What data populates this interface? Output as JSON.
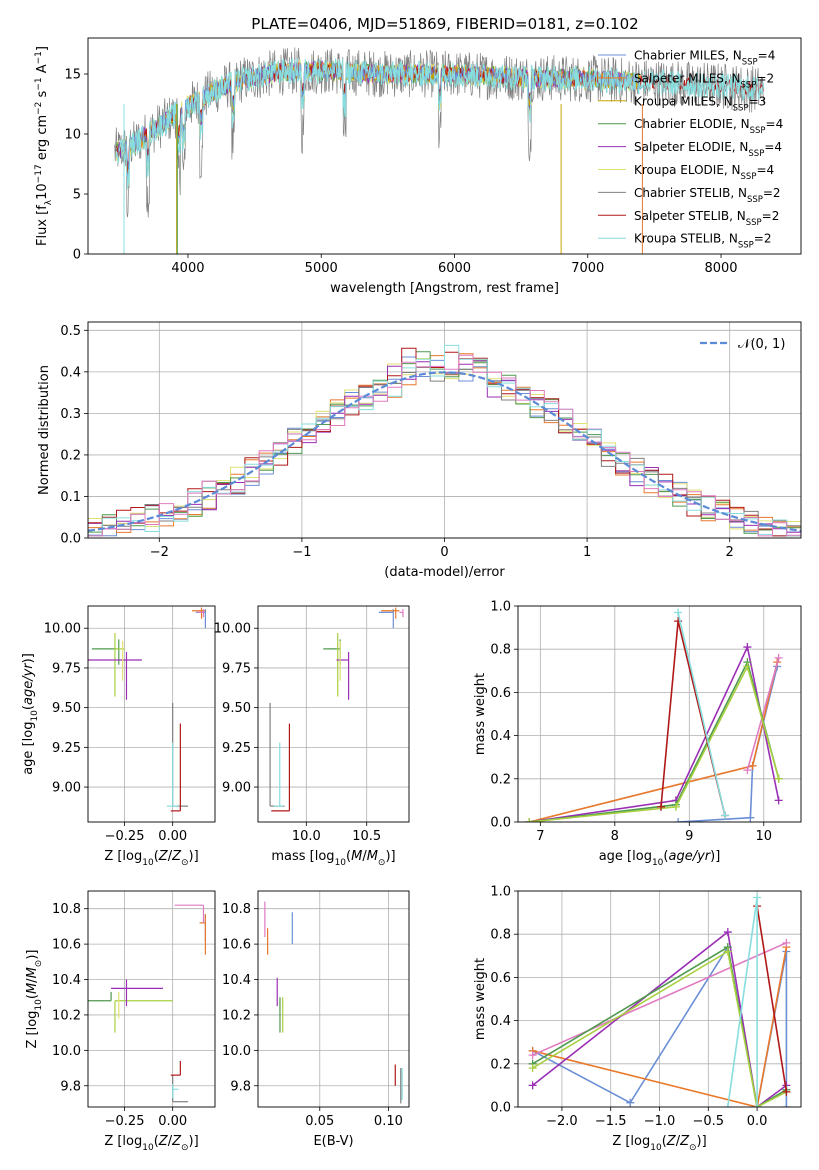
{
  "figure_title": "PLATE=0406, MJD=51869, FIBERID=0181, z=0.102",
  "colors": {
    "chabrier_miles": "#6b8fd6",
    "salpeter_miles": "#e8782c",
    "kroupa_miles": "#c8a400",
    "chabrier_elodie": "#4f9a4f",
    "salpeter_elodie": "#9a2fb5",
    "kroupa_elodie": "#e0e070",
    "chabrier_stelib": "#808080",
    "salpeter_stelib": "#b01818",
    "kroupa_stelib": "#88dede",
    "pink": "#e07bc0",
    "lime": "#a8d040",
    "normal": "#5b8bd6"
  },
  "chart_data": [
    {
      "id": "spectrum",
      "type": "line",
      "xlabel": "wavelength [Angstrom, rest frame]",
      "ylabel": "Flux [f",
      "xlim": [
        3250,
        8600
      ],
      "ylim": [
        0,
        18
      ],
      "xticks": [
        4000,
        5000,
        6000,
        7000,
        8000
      ],
      "yticks": [
        0,
        5,
        10,
        15
      ],
      "spectrum_envelope": {
        "x": [
          3450,
          3600,
          3800,
          4000,
          4200,
          4400,
          4700,
          5000,
          5500,
          6000,
          6500,
          7000,
          7500,
          8000,
          8300
        ],
        "y": [
          8.5,
          9.2,
          10.8,
          12.3,
          13.6,
          14.5,
          15.2,
          15.3,
          15.0,
          15.0,
          14.7,
          14.6,
          14.3,
          14.0,
          13.7
        ]
      },
      "legend": [
        {
          "label": "Chabrier MILES, N",
          "sub": "SSP",
          "suffix": "=4",
          "color": "chabrier_miles"
        },
        {
          "label": "Salpeter MILES, N",
          "sub": "SSP",
          "suffix": "=2",
          "color": "salpeter_miles"
        },
        {
          "label": "Kroupa MILES, N",
          "sub": "SSP",
          "suffix": "=3",
          "color": "kroupa_miles"
        },
        {
          "label": "Chabrier ELODIE, N",
          "sub": "SSP",
          "suffix": "=4",
          "color": "chabrier_elodie"
        },
        {
          "label": "Salpeter ELODIE, N",
          "sub": "SSP",
          "suffix": "=4",
          "color": "salpeter_elodie"
        },
        {
          "label": "Kroupa ELODIE, N",
          "sub": "SSP",
          "suffix": "=4",
          "color": "kroupa_elodie"
        },
        {
          "label": "Chabrier STELIB, N",
          "sub": "SSP",
          "suffix": "=2",
          "color": "chabrier_stelib"
        },
        {
          "label": "Salpeter STELIB, N",
          "sub": "SSP",
          "suffix": "=2",
          "color": "salpeter_stelib"
        },
        {
          "label": "Kroupa STELIB, N",
          "sub": "SSP",
          "suffix": "=2",
          "color": "kroupa_stelib"
        }
      ]
    },
    {
      "id": "residuals",
      "type": "line",
      "xlabel": "(data-model)/error",
      "ylabel": "Normed distribution",
      "xlim": [
        -2.5,
        2.5
      ],
      "ylim": [
        0,
        0.52
      ],
      "xticks": [
        -2,
        -1,
        0,
        1,
        2
      ],
      "yticks": [
        0.0,
        0.1,
        0.2,
        0.3,
        0.4,
        0.5
      ],
      "legend_label": "𝒩(0, 1)",
      "grid": true
    },
    {
      "id": "age_Z",
      "type": "scatter",
      "xlabel": "Z [log",
      "ylabel": "age  [log",
      "xlim": [
        -0.44,
        0.22
      ],
      "ylim": [
        8.78,
        10.14
      ],
      "xticks": [
        -0.25,
        0.0
      ],
      "xticklabels": [
        "−0.25",
        "0.00"
      ],
      "yticks": [
        9.0,
        9.25,
        9.5,
        9.75,
        10.0
      ],
      "yticklabels": [
        "9.00",
        "9.25",
        "9.50",
        "9.75",
        "10.00"
      ],
      "points": [
        {
          "x": 0.17,
          "y": 10.1,
          "xerr": [
            0.05,
            0.0
          ],
          "yerr": [
            0.1,
            0.02
          ],
          "c": "chabrier_miles"
        },
        {
          "x": 0.15,
          "y": 10.11,
          "xerr": [
            0.05,
            0.02
          ],
          "yerr": [
            0.05,
            0.02
          ],
          "c": "salpeter_miles"
        },
        {
          "x": 0.16,
          "y": 10.1,
          "xerr": [
            0.03,
            0.0
          ],
          "yerr": [
            0.03,
            0.02
          ],
          "c": "pink"
        },
        {
          "x": -0.28,
          "y": 9.87,
          "xerr": [
            0.14,
            0.0
          ],
          "yerr": [
            0.1,
            0.06
          ],
          "c": "chabrier_elodie"
        },
        {
          "x": -0.3,
          "y": 9.87,
          "xerr": [
            0.0,
            0.05
          ],
          "yerr": [
            0.3,
            0.1
          ],
          "c": "lime"
        },
        {
          "x": -0.24,
          "y": 9.8,
          "xerr": [
            0.2,
            0.08
          ],
          "yerr": [
            0.25,
            0.05
          ],
          "c": "salpeter_elodie"
        },
        {
          "x": -0.26,
          "y": 9.87,
          "xerr": [
            0.0,
            0.0
          ],
          "yerr": [
            0.2,
            0.05
          ],
          "c": "kroupa_elodie"
        },
        {
          "x": 0.0,
          "y": 8.88,
          "xerr": [
            0.0,
            0.08
          ],
          "yerr": [
            0.0,
            0.65
          ],
          "c": "chabrier_stelib"
        },
        {
          "x": 0.04,
          "y": 8.85,
          "xerr": [
            0.05,
            0.0
          ],
          "yerr": [
            0.0,
            0.55
          ],
          "c": "salpeter_stelib"
        },
        {
          "x": 0.0,
          "y": 8.88,
          "xerr": [
            0.03,
            0.03
          ],
          "yerr": [
            0.0,
            0.4
          ],
          "c": "kroupa_stelib"
        }
      ]
    },
    {
      "id": "age_mass",
      "type": "scatter",
      "xlabel": "mass [log",
      "ylabel": "",
      "xlim": [
        9.6,
        10.85
      ],
      "ylim": [
        8.78,
        10.14
      ],
      "xticks": [
        10.0,
        10.5
      ],
      "xticklabels": [
        "10.0",
        "10.5"
      ],
      "yticks": [
        9.0,
        9.25,
        9.5,
        9.75,
        10.0
      ],
      "yticklabels": [
        "9.00",
        "9.25",
        "9.50",
        "9.75",
        "10.00"
      ],
      "points": [
        {
          "x": 10.72,
          "y": 10.1,
          "xerr": [
            0.12,
            0.0
          ],
          "yerr": [
            0.1,
            0.02
          ],
          "c": "chabrier_miles"
        },
        {
          "x": 10.74,
          "y": 10.11,
          "xerr": [
            0.12,
            0.03
          ],
          "yerr": [
            0.05,
            0.02
          ],
          "c": "salpeter_miles"
        },
        {
          "x": 10.8,
          "y": 10.1,
          "xerr": [
            0.03,
            0.0
          ],
          "yerr": [
            0.03,
            0.02
          ],
          "c": "pink"
        },
        {
          "x": 10.28,
          "y": 9.87,
          "xerr": [
            0.14,
            0.0
          ],
          "yerr": [
            0.1,
            0.06
          ],
          "c": "chabrier_elodie"
        },
        {
          "x": 10.26,
          "y": 9.87,
          "xerr": [
            0.0,
            0.0
          ],
          "yerr": [
            0.3,
            0.1
          ],
          "c": "lime"
        },
        {
          "x": 10.35,
          "y": 9.8,
          "xerr": [
            0.1,
            0.0
          ],
          "yerr": [
            0.25,
            0.05
          ],
          "c": "salpeter_elodie"
        },
        {
          "x": 10.28,
          "y": 9.87,
          "xerr": [
            0.0,
            0.0
          ],
          "yerr": [
            0.2,
            0.05
          ],
          "c": "kroupa_elodie"
        },
        {
          "x": 9.7,
          "y": 8.88,
          "xerr": [
            0.0,
            0.12
          ],
          "yerr": [
            0.0,
            0.65
          ],
          "c": "chabrier_stelib"
        },
        {
          "x": 9.86,
          "y": 8.85,
          "xerr": [
            0.15,
            0.0
          ],
          "yerr": [
            0.0,
            0.55
          ],
          "c": "salpeter_stelib"
        },
        {
          "x": 9.78,
          "y": 8.88,
          "xerr": [
            0.05,
            0.03
          ],
          "yerr": [
            0.0,
            0.4
          ],
          "c": "kroupa_stelib"
        }
      ]
    },
    {
      "id": "mw_age",
      "type": "line",
      "xlabel": "age  [log",
      "ylabel": "mass weight",
      "xlim": [
        6.7,
        10.5
      ],
      "ylim": [
        0.0,
        1.0
      ],
      "xticks": [
        7,
        8,
        9,
        10
      ],
      "yticks": [
        0.0,
        0.2,
        0.4,
        0.6,
        0.8,
        1.0
      ],
      "yticklabels": [
        "0.0",
        "0.2",
        "0.4",
        "0.6",
        "0.8",
        "1.0"
      ],
      "series": [
        {
          "c": "chabrier_miles",
          "x": [
            8.85,
            9.82,
            9.85,
            10.18
          ],
          "y": [
            0.0,
            0.02,
            0.26,
            0.72
          ]
        },
        {
          "c": "salpeter_miles",
          "x": [
            6.85,
            9.85,
            10.18
          ],
          "y": [
            0.0,
            0.26,
            0.74
          ]
        },
        {
          "c": "pink",
          "x": [
            9.78,
            10.2
          ],
          "y": [
            0.24,
            0.76
          ]
        },
        {
          "c": "salpeter_elodie",
          "x": [
            6.85,
            8.82,
            9.78,
            10.2
          ],
          "y": [
            0.0,
            0.1,
            0.81,
            0.1
          ]
        },
        {
          "c": "chabrier_elodie",
          "x": [
            6.85,
            8.82,
            9.78,
            10.2
          ],
          "y": [
            0.0,
            0.08,
            0.74,
            0.2
          ]
        },
        {
          "c": "lime",
          "x": [
            6.85,
            8.82,
            9.78,
            10.2
          ],
          "y": [
            0.0,
            0.07,
            0.72,
            0.2
          ]
        },
        {
          "c": "salpeter_stelib",
          "x": [
            8.62,
            8.85,
            9.48
          ],
          "y": [
            0.07,
            0.93,
            0.03
          ]
        },
        {
          "c": "kroupa_stelib",
          "x": [
            8.85,
            9.48
          ],
          "y": [
            0.97,
            0.03
          ]
        }
      ]
    },
    {
      "id": "mass_Z",
      "type": "scatter",
      "xlabel": "Z [log",
      "ylabel": "mass [log",
      "xlim": [
        -0.44,
        0.22
      ],
      "ylim": [
        9.68,
        10.9
      ],
      "xticks": [
        -0.25,
        0.0
      ],
      "xticklabels": [
        "−0.25",
        "0.00"
      ],
      "yticks": [
        9.8,
        10.0,
        10.2,
        10.4,
        10.6,
        10.8
      ],
      "yticklabels": [
        "9.8",
        "10.0",
        "10.2",
        "10.4",
        "10.6",
        "10.8"
      ],
      "points": [
        {
          "x": 0.17,
          "y": 10.72,
          "xerr": [
            0.0,
            0.0
          ],
          "yerr": [
            0.1,
            0.05
          ],
          "c": "chabrier_miles"
        },
        {
          "x": 0.17,
          "y": 10.72,
          "xerr": [
            0.03,
            0.0
          ],
          "yerr": [
            0.18,
            0.05
          ],
          "c": "salpeter_miles"
        },
        {
          "x": 0.16,
          "y": 10.82,
          "xerr": [
            0.15,
            0.0
          ],
          "yerr": [
            0.1,
            0.0
          ],
          "c": "pink"
        },
        {
          "x": -0.32,
          "y": 10.28,
          "xerr": [
            0.12,
            0.0
          ],
          "yerr": [
            0.0,
            0.05
          ],
          "c": "chabrier_elodie"
        },
        {
          "x": -0.3,
          "y": 10.28,
          "xerr": [
            0.0,
            0.3
          ],
          "yerr": [
            0.18,
            0.0
          ],
          "c": "lime"
        },
        {
          "x": -0.24,
          "y": 10.35,
          "xerr": [
            0.08,
            0.19
          ],
          "yerr": [
            0.1,
            0.05
          ],
          "c": "salpeter_elodie"
        },
        {
          "x": -0.28,
          "y": 10.28,
          "xerr": [
            0.0,
            0.0
          ],
          "yerr": [
            0.1,
            0.05
          ],
          "c": "kroupa_elodie"
        },
        {
          "x": 0.0,
          "y": 9.71,
          "xerr": [
            0.0,
            0.08
          ],
          "yerr": [
            0.0,
            0.15
          ],
          "c": "chabrier_stelib"
        },
        {
          "x": 0.04,
          "y": 9.86,
          "xerr": [
            0.05,
            0.0
          ],
          "yerr": [
            0.0,
            0.08
          ],
          "c": "salpeter_stelib"
        },
        {
          "x": 0.0,
          "y": 9.78,
          "xerr": [
            0.0,
            0.03
          ],
          "yerr": [
            0.05,
            0.03
          ],
          "c": "kroupa_stelib"
        }
      ]
    },
    {
      "id": "mass_ebv",
      "type": "scatter",
      "xlabel": "E(B-V)",
      "ylabel": "",
      "xlim": [
        0.005,
        0.115
      ],
      "ylim": [
        9.68,
        10.9
      ],
      "xticks": [
        0.05,
        0.1
      ],
      "xticklabels": [
        "0.05",
        "0.10"
      ],
      "yticks": [
        9.8,
        10.0,
        10.2,
        10.4,
        10.6,
        10.8
      ],
      "yticklabels": [
        "9.8",
        "10.0",
        "10.2",
        "10.4",
        "10.6",
        "10.8"
      ],
      "points": [
        {
          "x": 0.03,
          "y": 10.72,
          "xerr": [
            0,
            0
          ],
          "yerr": [
            0.12,
            0.06
          ],
          "c": "chabrier_miles"
        },
        {
          "x": 0.012,
          "y": 10.64,
          "xerr": [
            0,
            0
          ],
          "yerr": [
            0.1,
            0.05
          ],
          "c": "salpeter_miles"
        },
        {
          "x": 0.01,
          "y": 10.74,
          "xerr": [
            0,
            0
          ],
          "yerr": [
            0.1,
            0.1
          ],
          "c": "pink"
        },
        {
          "x": 0.021,
          "y": 10.22,
          "xerr": [
            0,
            0
          ],
          "yerr": [
            0.12,
            0.08
          ],
          "c": "chabrier_elodie"
        },
        {
          "x": 0.023,
          "y": 10.22,
          "xerr": [
            0,
            0
          ],
          "yerr": [
            0.12,
            0.08
          ],
          "c": "lime"
        },
        {
          "x": 0.019,
          "y": 10.33,
          "xerr": [
            0,
            0
          ],
          "yerr": [
            0.08,
            0.08
          ],
          "c": "salpeter_elodie"
        },
        {
          "x": 0.105,
          "y": 9.86,
          "xerr": [
            0,
            0
          ],
          "yerr": [
            0.06,
            0.06
          ],
          "c": "salpeter_stelib"
        },
        {
          "x": 0.109,
          "y": 9.8,
          "xerr": [
            0,
            0
          ],
          "yerr": [
            0.1,
            0.1
          ],
          "c": "chabrier_stelib"
        },
        {
          "x": 0.11,
          "y": 9.8,
          "xerr": [
            0,
            0
          ],
          "yerr": [
            0.08,
            0.1
          ],
          "c": "kroupa_stelib"
        }
      ]
    },
    {
      "id": "mw_Z",
      "type": "line",
      "xlabel": "Z [log",
      "ylabel": "mass weight",
      "xlim": [
        -2.45,
        0.45
      ],
      "ylim": [
        0.0,
        1.0
      ],
      "xticks": [
        -2.0,
        -1.5,
        -1.0,
        -0.5,
        0.0
      ],
      "xticklabels": [
        "−2.0",
        "−1.5",
        "−1.0",
        "−0.5",
        "0.0"
      ],
      "yticks": [
        0.0,
        0.2,
        0.4,
        0.6,
        0.8,
        1.0
      ],
      "yticklabels": [
        "0.0",
        "0.2",
        "0.4",
        "0.6",
        "0.8",
        "1.0"
      ],
      "series": [
        {
          "c": "chabrier_miles",
          "x": [
            -2.3,
            -1.3,
            -0.3,
            0.0,
            0.3,
            0.3
          ],
          "y": [
            0.26,
            0.02,
            0.74,
            0.0,
            0.72,
            0.0
          ]
        },
        {
          "c": "salpeter_miles",
          "x": [
            -2.3,
            0.0,
            0.3
          ],
          "y": [
            0.26,
            0.0,
            0.74
          ]
        },
        {
          "c": "pink",
          "x": [
            -2.3,
            0.3
          ],
          "y": [
            0.24,
            0.76
          ]
        },
        {
          "c": "salpeter_elodie",
          "x": [
            -2.3,
            -0.3,
            0.0,
            0.3
          ],
          "y": [
            0.1,
            0.81,
            0.0,
            0.1
          ]
        },
        {
          "c": "chabrier_elodie",
          "x": [
            -2.3,
            -0.3,
            0.0,
            0.3
          ],
          "y": [
            0.2,
            0.74,
            0.0,
            0.08
          ]
        },
        {
          "c": "lime",
          "x": [
            -2.3,
            -0.3,
            0.0,
            0.3
          ],
          "y": [
            0.18,
            0.72,
            0.0,
            0.07
          ]
        },
        {
          "c": "salpeter_stelib",
          "x": [
            0.0,
            0.3
          ],
          "y": [
            0.93,
            0.07
          ]
        },
        {
          "c": "kroupa_stelib",
          "x": [
            -0.3,
            0.0,
            0.0
          ],
          "y": [
            0.0,
            0.97,
            0.0
          ]
        }
      ]
    }
  ]
}
